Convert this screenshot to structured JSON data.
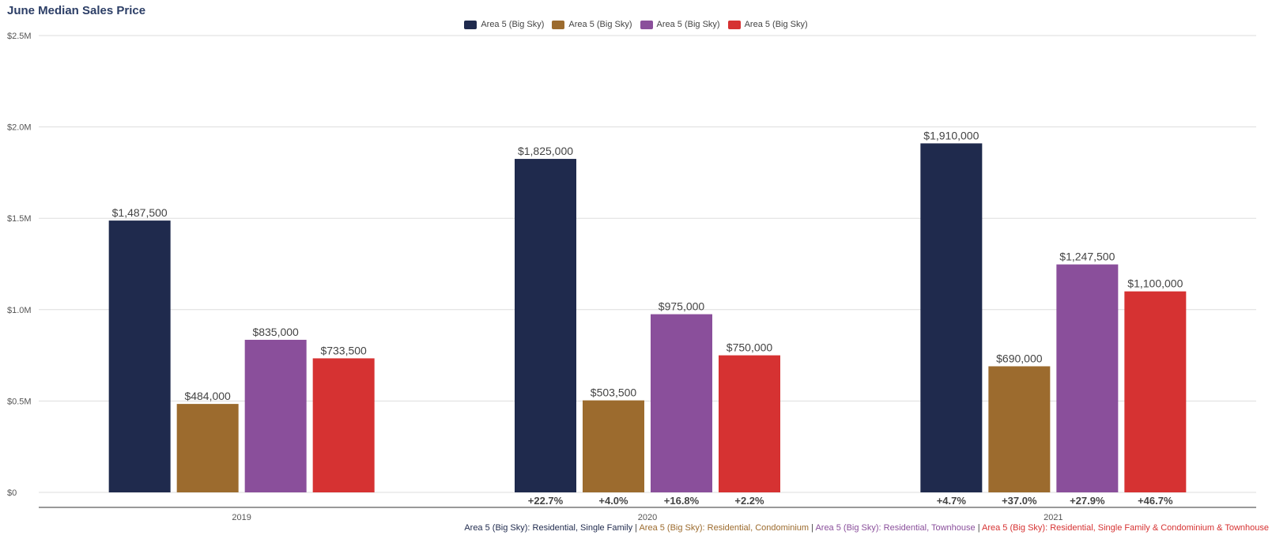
{
  "chart_data": {
    "type": "bar",
    "title": "June Median Sales Price",
    "categories": [
      "2019",
      "2020",
      "2021"
    ],
    "ylim": [
      0,
      2500000
    ],
    "yticks": [
      {
        "value": 0,
        "label": "$0"
      },
      {
        "value": 500000,
        "label": "$0.5M"
      },
      {
        "value": 1000000,
        "label": "$1.0M"
      },
      {
        "value": 1500000,
        "label": "$1.5M"
      },
      {
        "value": 2000000,
        "label": "$2.0M"
      },
      {
        "value": 2500000,
        "label": "$2.5M"
      }
    ],
    "grid": true,
    "legend_position": "top-center",
    "series": [
      {
        "name": "Area 5 (Big Sky)",
        "color": "#1f2a4d",
        "values": [
          1487500,
          1825000,
          1910000
        ],
        "labels": [
          "$1,487,500",
          "$1,825,000",
          "$1,910,000"
        ],
        "changes": [
          "",
          "+22.7%",
          "+4.7%"
        ]
      },
      {
        "name": "Area 5 (Big Sky)",
        "color": "#9c6b2e",
        "values": [
          484000,
          503500,
          690000
        ],
        "labels": [
          "$484,000",
          "$503,500",
          "$690,000"
        ],
        "changes": [
          "",
          "+4.0%",
          "+37.0%"
        ]
      },
      {
        "name": "Area 5 (Big Sky)",
        "color": "#8a4f9b",
        "values": [
          835000,
          975000,
          1247500
        ],
        "labels": [
          "$835,000",
          "$975,000",
          "$1,247,500"
        ],
        "changes": [
          "",
          "+16.8%",
          "+27.9%"
        ]
      },
      {
        "name": "Area 5 (Big Sky)",
        "color": "#d63232",
        "values": [
          733500,
          750000,
          1100000
        ],
        "labels": [
          "$733,500",
          "$750,000",
          "$1,100,000"
        ],
        "changes": [
          "",
          "+2.2%",
          "+46.7%"
        ]
      }
    ],
    "footer": [
      {
        "prefix": "Area 5 (Big Sky)",
        "text": ": Residential, Single Family",
        "color": "#1f2a4d"
      },
      {
        "prefix": "Area 5 (Big Sky)",
        "text": ": Residential, Condominium",
        "color": "#9c6b2e"
      },
      {
        "prefix": "Area 5 (Big Sky)",
        "text": ": Residential, Townhouse",
        "color": "#8a4f9b"
      },
      {
        "prefix": "Area 5 (Big Sky)",
        "text": ": Residential, Single Family & Condominium & Townhouse",
        "color": "#d63232"
      }
    ],
    "footer_separator": " | "
  }
}
